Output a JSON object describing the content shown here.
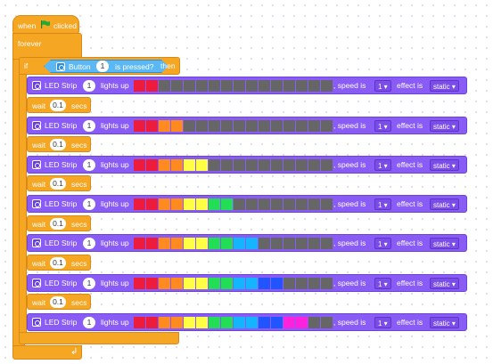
{
  "hat": {
    "when": "when",
    "clicked": "clicked"
  },
  "forever": {
    "label": "forever"
  },
  "if_block": {
    "if_label": "if",
    "sensor_label": "Button",
    "sensor_value": "1",
    "suffix": "is pressed?",
    "then_label": "then"
  },
  "led_text": {
    "name": "LED Strip",
    "lights_up": "lights up",
    "speed_label": ", speed is",
    "effect_label": "effect is"
  },
  "wait_text": {
    "wait": "wait",
    "secs": "secs"
  },
  "led_blocks": [
    {
      "index": "1",
      "speed": "1",
      "effect": "static",
      "colors": [
        "#ed1c3c",
        "#ed1c3c",
        "#666666",
        "#666666",
        "#666666",
        "#666666",
        "#666666",
        "#666666",
        "#666666",
        "#666666",
        "#666666",
        "#666666",
        "#666666",
        "#666666",
        "#666666",
        "#666666"
      ]
    },
    {
      "index": "1",
      "speed": "1",
      "effect": "static",
      "colors": [
        "#ed1c3c",
        "#ed1c3c",
        "#ff8a1f",
        "#ff8a1f",
        "#666666",
        "#666666",
        "#666666",
        "#666666",
        "#666666",
        "#666666",
        "#666666",
        "#666666",
        "#666666",
        "#666666",
        "#666666",
        "#666666"
      ]
    },
    {
      "index": "1",
      "speed": "1",
      "effect": "static",
      "colors": [
        "#ed1c3c",
        "#ed1c3c",
        "#ff8a1f",
        "#ff8a1f",
        "#ffff44",
        "#ffff44",
        "#666666",
        "#666666",
        "#666666",
        "#666666",
        "#666666",
        "#666666",
        "#666666",
        "#666666",
        "#666666",
        "#666666"
      ]
    },
    {
      "index": "1",
      "speed": "1",
      "effect": "static",
      "colors": [
        "#ed1c3c",
        "#ed1c3c",
        "#ff8a1f",
        "#ff8a1f",
        "#ffff44",
        "#ffff44",
        "#22dd55",
        "#22dd55",
        "#666666",
        "#666666",
        "#666666",
        "#666666",
        "#666666",
        "#666666",
        "#666666",
        "#666666"
      ]
    },
    {
      "index": "1",
      "speed": "1",
      "effect": "static",
      "colors": [
        "#ed1c3c",
        "#ed1c3c",
        "#ff8a1f",
        "#ff8a1f",
        "#ffff44",
        "#ffff44",
        "#22dd55",
        "#22dd55",
        "#14b4ff",
        "#14b4ff",
        "#666666",
        "#666666",
        "#666666",
        "#666666",
        "#666666",
        "#666666"
      ]
    },
    {
      "index": "1",
      "speed": "1",
      "effect": "static",
      "colors": [
        "#ed1c3c",
        "#ed1c3c",
        "#ff8a1f",
        "#ff8a1f",
        "#ffff44",
        "#ffff44",
        "#22dd55",
        "#22dd55",
        "#14b4ff",
        "#14b4ff",
        "#2255ff",
        "#2255ff",
        "#666666",
        "#666666",
        "#666666",
        "#666666"
      ]
    },
    {
      "index": "1",
      "speed": "1",
      "effect": "static",
      "colors": [
        "#ed1c3c",
        "#ed1c3c",
        "#ff8a1f",
        "#ff8a1f",
        "#ffff44",
        "#ffff44",
        "#22dd55",
        "#22dd55",
        "#14b4ff",
        "#14b4ff",
        "#2255ff",
        "#2255ff",
        "#ff22dd",
        "#ff22dd",
        "#666666",
        "#666666"
      ]
    }
  ],
  "wait_blocks": [
    {
      "value": "0.1"
    },
    {
      "value": "0.1"
    },
    {
      "value": "0.1"
    },
    {
      "value": "0.1"
    },
    {
      "value": "0.1"
    },
    {
      "value": "0.1"
    }
  ],
  "colors": {
    "control": "#f5a623",
    "led_block": "#8a5cf6",
    "sensor": "#5bb8f5",
    "flag": "#22aa33"
  }
}
